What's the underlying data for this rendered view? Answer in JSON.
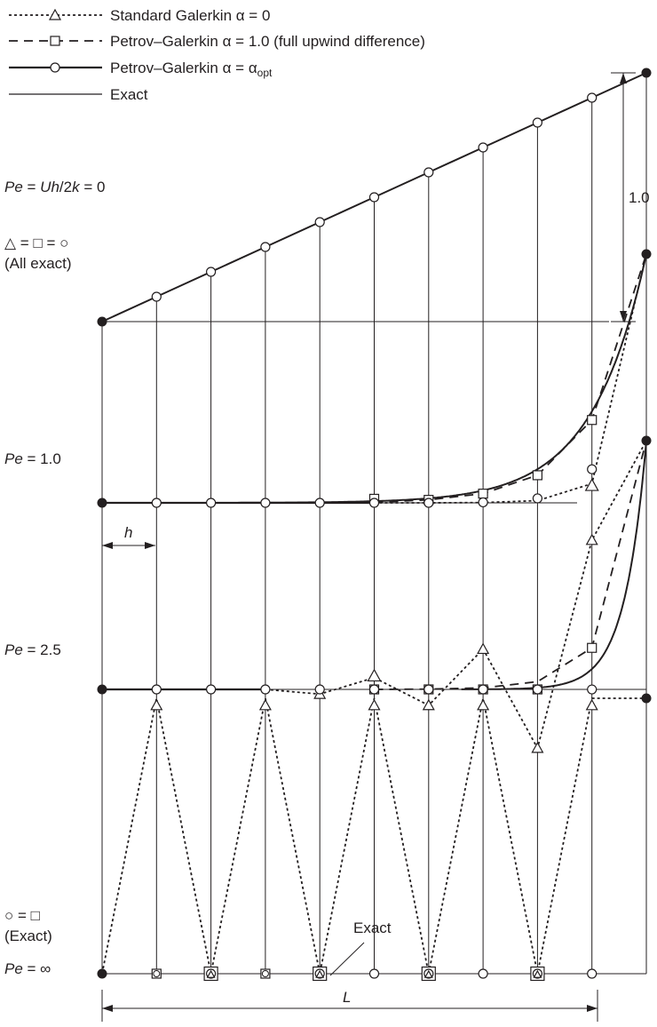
{
  "legend": [
    {
      "text": "Standard Galerkin α = 0",
      "style": "dotted",
      "marker": "triangle"
    },
    {
      "text": "Petrov–Galerkin α = 1.0 (full upwind difference)",
      "style": "dashed",
      "marker": "square"
    },
    {
      "text_main": "Petrov–Galerkin α = α",
      "text_sub": "opt",
      "style": "solid",
      "marker": "circle"
    },
    {
      "text": "Exact",
      "style": "solid",
      "marker": "none"
    }
  ],
  "cases": [
    {
      "pe_italic": "Pe",
      "pe_rest": " = ",
      "pe_expr_italic1": "Uh",
      "pe_expr_mid": "/2",
      "pe_expr_italic2": "k",
      "pe_expr_end": " = 0",
      "note1": "△ = □ = ○",
      "note2": "(All exact)",
      "nodal_values": [
        0,
        0.1,
        0.2,
        0.3,
        0.4,
        0.5,
        0.6,
        0.7,
        0.8,
        0.9,
        1.0
      ]
    },
    {
      "pe_italic": "Pe",
      "pe_rest": " = 1.0",
      "galerkin": [
        0,
        0,
        0,
        0,
        0,
        0,
        0,
        0.001,
        0.009,
        0.077,
        1.0
      ],
      "upwind": [
        0,
        0,
        0,
        0,
        0,
        0.002,
        0.012,
        0.037,
        0.111,
        0.333,
        1.0
      ],
      "optimal": [
        0,
        0,
        0,
        0,
        0,
        0,
        0,
        0.002,
        0.018,
        0.135,
        1.0
      ]
    },
    {
      "pe_italic": "Pe",
      "pe_rest": " = 2.5",
      "galerkin": [
        0,
        0,
        0,
        0,
        -0.019,
        0.047,
        -0.064,
        0.162,
        -0.236,
        0.6,
        1.0
      ],
      "upwind": [
        0,
        0,
        0,
        0,
        0,
        0,
        0.001,
        0.006,
        0.031,
        0.167,
        1.0
      ],
      "optimal": [
        0,
        0,
        0,
        0,
        0,
        0,
        0,
        0,
        0,
        0.007,
        1.0
      ]
    },
    {
      "pe_italic": "Pe",
      "pe_rest": " = ∞",
      "note1": "○ = □",
      "note2": "(Exact)",
      "galerkin": [
        0,
        1,
        0,
        1,
        0,
        1,
        0,
        1,
        0,
        1,
        1.0
      ],
      "optimal": [
        0,
        0,
        0,
        0,
        0,
        0,
        0,
        0,
        0,
        0,
        1.0
      ],
      "exact_label": "Exact"
    }
  ],
  "dimensions": {
    "height_label": "1.0",
    "h_label": "h",
    "length_label": "L"
  },
  "colors": {
    "ink": "#231f20",
    "background": "#ffffff"
  }
}
